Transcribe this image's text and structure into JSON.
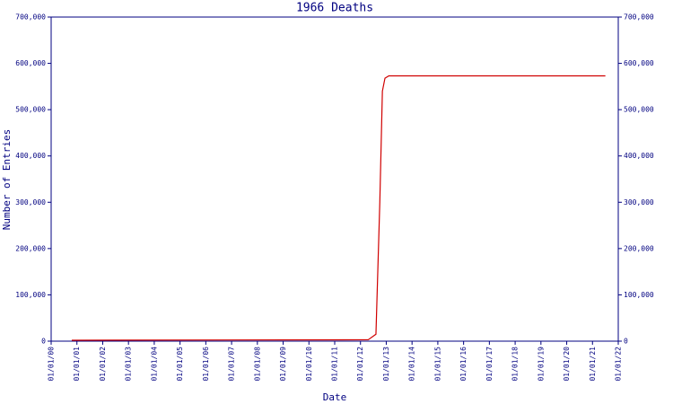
{
  "chart_data": {
    "type": "line",
    "title": "1966 Deaths",
    "x_label": "Date",
    "y_label": "Number of Entries",
    "x": [
      0.8,
      12.3,
      12.6,
      12.75,
      12.85,
      12.95,
      13.1,
      21.5
    ],
    "values": [
      2000,
      3000,
      15000,
      300000,
      540000,
      568000,
      573000,
      573000
    ],
    "color": "#d00000",
    "xlim": [
      0,
      22
    ],
    "xticks": [
      {
        "value": 0,
        "label": "01/01/00"
      },
      {
        "value": 1,
        "label": "01/01/01"
      },
      {
        "value": 2,
        "label": "01/01/02"
      },
      {
        "value": 3,
        "label": "01/01/03"
      },
      {
        "value": 4,
        "label": "01/01/04"
      },
      {
        "value": 5,
        "label": "01/01/05"
      },
      {
        "value": 6,
        "label": "01/01/06"
      },
      {
        "value": 7,
        "label": "01/01/07"
      },
      {
        "value": 8,
        "label": "01/01/08"
      },
      {
        "value": 9,
        "label": "01/01/09"
      },
      {
        "value": 10,
        "label": "01/01/10"
      },
      {
        "value": 11,
        "label": "01/01/11"
      },
      {
        "value": 12,
        "label": "01/01/12"
      },
      {
        "value": 13,
        "label": "01/01/13"
      },
      {
        "value": 14,
        "label": "01/01/14"
      },
      {
        "value": 15,
        "label": "01/01/15"
      },
      {
        "value": 16,
        "label": "01/01/16"
      },
      {
        "value": 17,
        "label": "01/01/17"
      },
      {
        "value": 18,
        "label": "01/01/18"
      },
      {
        "value": 19,
        "label": "01/01/19"
      },
      {
        "value": 20,
        "label": "01/01/20"
      },
      {
        "value": 21,
        "label": "01/01/21"
      },
      {
        "value": 22,
        "label": "01/01/22"
      }
    ],
    "ylim": [
      0,
      700000
    ],
    "yticks": [
      0,
      {
        "value": 100000,
        "label": "100,000"
      },
      {
        "value": 200000,
        "label": "200,000"
      },
      {
        "value": 300000,
        "label": "300,000"
      },
      {
        "value": 400000,
        "label": "400,000"
      },
      {
        "value": 500000,
        "label": "500,000"
      },
      {
        "value": 600000,
        "label": "600,000"
      },
      {
        "value": 700000,
        "label": "700,000"
      }
    ],
    "y2lim": [
      0,
      700000
    ],
    "y2ticks": [
      0,
      {
        "value": 100000,
        "label": "100,000"
      },
      {
        "value": 200000,
        "label": "200,000"
      },
      {
        "value": 300000,
        "label": "300,000"
      },
      {
        "value": 400000,
        "label": "400,000"
      },
      {
        "value": 500000,
        "label": "500,000"
      },
      {
        "value": 600000,
        "label": "600,000"
      },
      {
        "value": 700000,
        "label": "700,000"
      }
    ],
    "grid": false
  }
}
